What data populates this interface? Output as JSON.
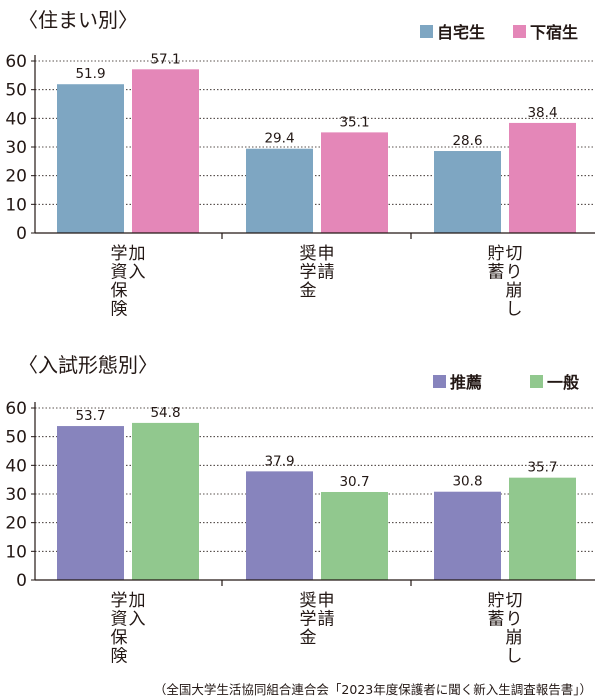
{
  "colors": {
    "home": "#7ea6c2",
    "boarding": "#e487b8",
    "recommendation": "#8784bd",
    "general": "#91c88e",
    "axis": "#231815",
    "grid": "#231815"
  },
  "chart_data": [
    {
      "type": "bar",
      "title": "〈住まい別〉",
      "categories": [
        "加入学資保険",
        "申請奨学金",
        "切り崩し貯蓄"
      ],
      "category_lines": [
        [
          "加入",
          "学資保険"
        ],
        [
          "申請",
          "奨学金"
        ],
        [
          "切り崩し",
          "貯蓄"
        ]
      ],
      "series": [
        {
          "name": "自宅生",
          "values": [
            51.9,
            29.4,
            28.6
          ],
          "color": "#7ea6c2"
        },
        {
          "name": "下宿生",
          "values": [
            57.1,
            35.1,
            38.4
          ],
          "color": "#e487b8"
        }
      ],
      "ylim": [
        0,
        60
      ],
      "yticks": [
        "0",
        "10",
        "20",
        "30",
        "40",
        "50",
        "60"
      ],
      "grid": true,
      "legend": "top-right"
    },
    {
      "type": "bar",
      "title": "〈入試形態別〉",
      "categories": [
        "加入学資保険",
        "申請奨学金",
        "切り崩し貯蓄"
      ],
      "category_lines": [
        [
          "加入",
          "学資保険"
        ],
        [
          "申請",
          "奨学金"
        ],
        [
          "切り崩し",
          "貯蓄"
        ]
      ],
      "series": [
        {
          "name": "推薦",
          "values": [
            53.7,
            37.9,
            30.8
          ],
          "color": "#8784bd"
        },
        {
          "name": "一般",
          "values": [
            54.8,
            30.7,
            35.7
          ],
          "color": "#91c88e"
        }
      ],
      "ylim": [
        0,
        60
      ],
      "yticks": [
        "0",
        "10",
        "20",
        "30",
        "40",
        "50",
        "60"
      ],
      "grid": true,
      "legend": "top-right"
    }
  ],
  "source": "（全国大学生活協同組合連合会「2023年度保護者に聞く新入生調査報告書」）"
}
